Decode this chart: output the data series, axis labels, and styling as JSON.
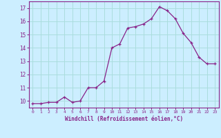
{
  "x": [
    0,
    1,
    2,
    3,
    4,
    5,
    6,
    7,
    8,
    9,
    10,
    11,
    12,
    13,
    14,
    15,
    16,
    17,
    18,
    19,
    20,
    21,
    22,
    23
  ],
  "y": [
    9.8,
    9.8,
    9.9,
    9.9,
    10.3,
    9.9,
    10.0,
    11.0,
    11.0,
    11.5,
    14.0,
    14.3,
    15.5,
    15.6,
    15.8,
    16.2,
    17.1,
    16.8,
    16.2,
    15.1,
    14.4,
    13.3,
    12.8,
    12.8
  ],
  "line_color": "#882288",
  "marker": "+",
  "bg_color": "#cceeff",
  "grid_color": "#aadddd",
  "xlabel": "Windchill (Refroidissement éolien,°C)",
  "yticks": [
    10,
    11,
    12,
    13,
    14,
    15,
    16,
    17
  ],
  "xlim": [
    -0.5,
    23.5
  ],
  "ylim": [
    9.5,
    17.5
  ],
  "tick_color": "#882288",
  "label_color": "#882288",
  "spine_color": "#882288",
  "axis_bg": "#cceeff"
}
